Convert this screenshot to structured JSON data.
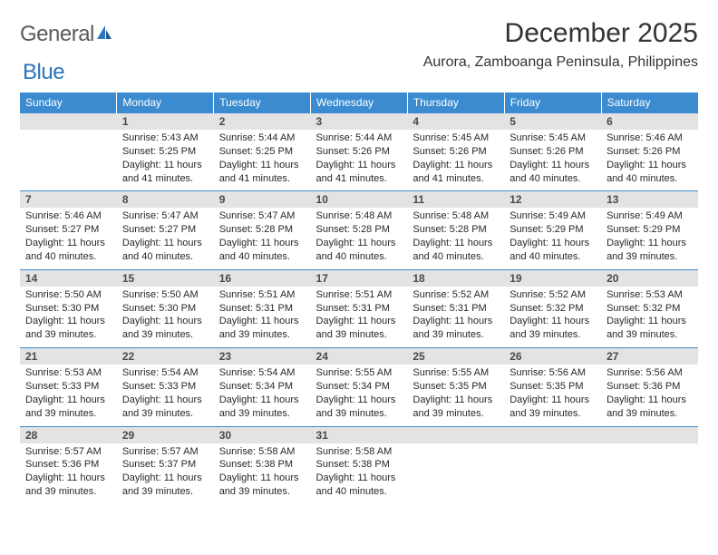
{
  "logo": {
    "word1": "General",
    "word2": "Blue"
  },
  "title": "December 2025",
  "location": "Aurora, Zamboanga Peninsula, Philippines",
  "colors": {
    "header_bg": "#3b8bd0",
    "header_text": "#ffffff",
    "daynum_bg": "#e3e3e3",
    "daynum_text": "#4a4a4a",
    "body_text": "#282828",
    "border": "#3b8bd0",
    "logo_gray": "#5a5a5a",
    "logo_blue": "#2a75bb"
  },
  "weekdays": [
    "Sunday",
    "Monday",
    "Tuesday",
    "Wednesday",
    "Thursday",
    "Friday",
    "Saturday"
  ],
  "weeks": [
    [
      null,
      {
        "n": "1",
        "sr": "5:43 AM",
        "ss": "5:25 PM",
        "dl": "11 hours and 41 minutes."
      },
      {
        "n": "2",
        "sr": "5:44 AM",
        "ss": "5:25 PM",
        "dl": "11 hours and 41 minutes."
      },
      {
        "n": "3",
        "sr": "5:44 AM",
        "ss": "5:26 PM",
        "dl": "11 hours and 41 minutes."
      },
      {
        "n": "4",
        "sr": "5:45 AM",
        "ss": "5:26 PM",
        "dl": "11 hours and 41 minutes."
      },
      {
        "n": "5",
        "sr": "5:45 AM",
        "ss": "5:26 PM",
        "dl": "11 hours and 40 minutes."
      },
      {
        "n": "6",
        "sr": "5:46 AM",
        "ss": "5:26 PM",
        "dl": "11 hours and 40 minutes."
      }
    ],
    [
      {
        "n": "7",
        "sr": "5:46 AM",
        "ss": "5:27 PM",
        "dl": "11 hours and 40 minutes."
      },
      {
        "n": "8",
        "sr": "5:47 AM",
        "ss": "5:27 PM",
        "dl": "11 hours and 40 minutes."
      },
      {
        "n": "9",
        "sr": "5:47 AM",
        "ss": "5:28 PM",
        "dl": "11 hours and 40 minutes."
      },
      {
        "n": "10",
        "sr": "5:48 AM",
        "ss": "5:28 PM",
        "dl": "11 hours and 40 minutes."
      },
      {
        "n": "11",
        "sr": "5:48 AM",
        "ss": "5:28 PM",
        "dl": "11 hours and 40 minutes."
      },
      {
        "n": "12",
        "sr": "5:49 AM",
        "ss": "5:29 PM",
        "dl": "11 hours and 40 minutes."
      },
      {
        "n": "13",
        "sr": "5:49 AM",
        "ss": "5:29 PM",
        "dl": "11 hours and 39 minutes."
      }
    ],
    [
      {
        "n": "14",
        "sr": "5:50 AM",
        "ss": "5:30 PM",
        "dl": "11 hours and 39 minutes."
      },
      {
        "n": "15",
        "sr": "5:50 AM",
        "ss": "5:30 PM",
        "dl": "11 hours and 39 minutes."
      },
      {
        "n": "16",
        "sr": "5:51 AM",
        "ss": "5:31 PM",
        "dl": "11 hours and 39 minutes."
      },
      {
        "n": "17",
        "sr": "5:51 AM",
        "ss": "5:31 PM",
        "dl": "11 hours and 39 minutes."
      },
      {
        "n": "18",
        "sr": "5:52 AM",
        "ss": "5:31 PM",
        "dl": "11 hours and 39 minutes."
      },
      {
        "n": "19",
        "sr": "5:52 AM",
        "ss": "5:32 PM",
        "dl": "11 hours and 39 minutes."
      },
      {
        "n": "20",
        "sr": "5:53 AM",
        "ss": "5:32 PM",
        "dl": "11 hours and 39 minutes."
      }
    ],
    [
      {
        "n": "21",
        "sr": "5:53 AM",
        "ss": "5:33 PM",
        "dl": "11 hours and 39 minutes."
      },
      {
        "n": "22",
        "sr": "5:54 AM",
        "ss": "5:33 PM",
        "dl": "11 hours and 39 minutes."
      },
      {
        "n": "23",
        "sr": "5:54 AM",
        "ss": "5:34 PM",
        "dl": "11 hours and 39 minutes."
      },
      {
        "n": "24",
        "sr": "5:55 AM",
        "ss": "5:34 PM",
        "dl": "11 hours and 39 minutes."
      },
      {
        "n": "25",
        "sr": "5:55 AM",
        "ss": "5:35 PM",
        "dl": "11 hours and 39 minutes."
      },
      {
        "n": "26",
        "sr": "5:56 AM",
        "ss": "5:35 PM",
        "dl": "11 hours and 39 minutes."
      },
      {
        "n": "27",
        "sr": "5:56 AM",
        "ss": "5:36 PM",
        "dl": "11 hours and 39 minutes."
      }
    ],
    [
      {
        "n": "28",
        "sr": "5:57 AM",
        "ss": "5:36 PM",
        "dl": "11 hours and 39 minutes."
      },
      {
        "n": "29",
        "sr": "5:57 AM",
        "ss": "5:37 PM",
        "dl": "11 hours and 39 minutes."
      },
      {
        "n": "30",
        "sr": "5:58 AM",
        "ss": "5:38 PM",
        "dl": "11 hours and 39 minutes."
      },
      {
        "n": "31",
        "sr": "5:58 AM",
        "ss": "5:38 PM",
        "dl": "11 hours and 40 minutes."
      },
      null,
      null,
      null
    ]
  ],
  "labels": {
    "sunrise": "Sunrise:",
    "sunset": "Sunset:",
    "daylight": "Daylight:"
  }
}
